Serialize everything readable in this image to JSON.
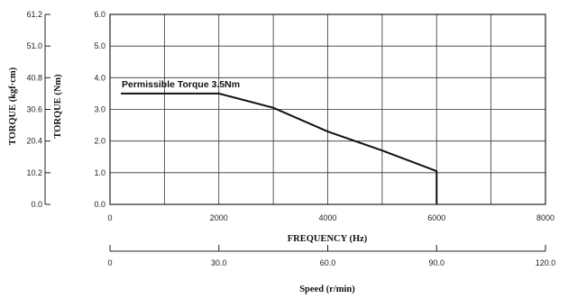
{
  "chart_data": {
    "type": "line",
    "xlabel": "FREQUENCY (Hz)",
    "ylabel": "TORQUE (Nm)",
    "ylabel_secondary": "TORQUE (kgf·cm)",
    "x2label": "Speed (r/min)",
    "xlim": [
      0,
      8000
    ],
    "ylim": [
      0,
      6
    ],
    "x_ticks": [
      "0",
      "2000",
      "4000",
      "6000",
      "8000"
    ],
    "y_ticks": [
      "0.0",
      "1.0",
      "2.0",
      "3.0",
      "4.0",
      "5.0",
      "6.0"
    ],
    "y2_ticks": [
      "0.0",
      "10.2",
      "20.4",
      "30.6",
      "40.8",
      "51.0",
      "61.2"
    ],
    "x2_ticks": [
      "0",
      "30.0",
      "60.0",
      "90.0",
      "120.0"
    ],
    "grid": true,
    "annotation": "Permissible Torque 3.5Nm",
    "series": [
      {
        "color": "#111111",
        "x": [
          200,
          2000,
          3000,
          4000,
          5000,
          6000,
          6000
        ],
        "y": [
          3.5,
          3.5,
          3.05,
          2.3,
          1.7,
          1.05,
          0.0
        ]
      }
    ]
  }
}
